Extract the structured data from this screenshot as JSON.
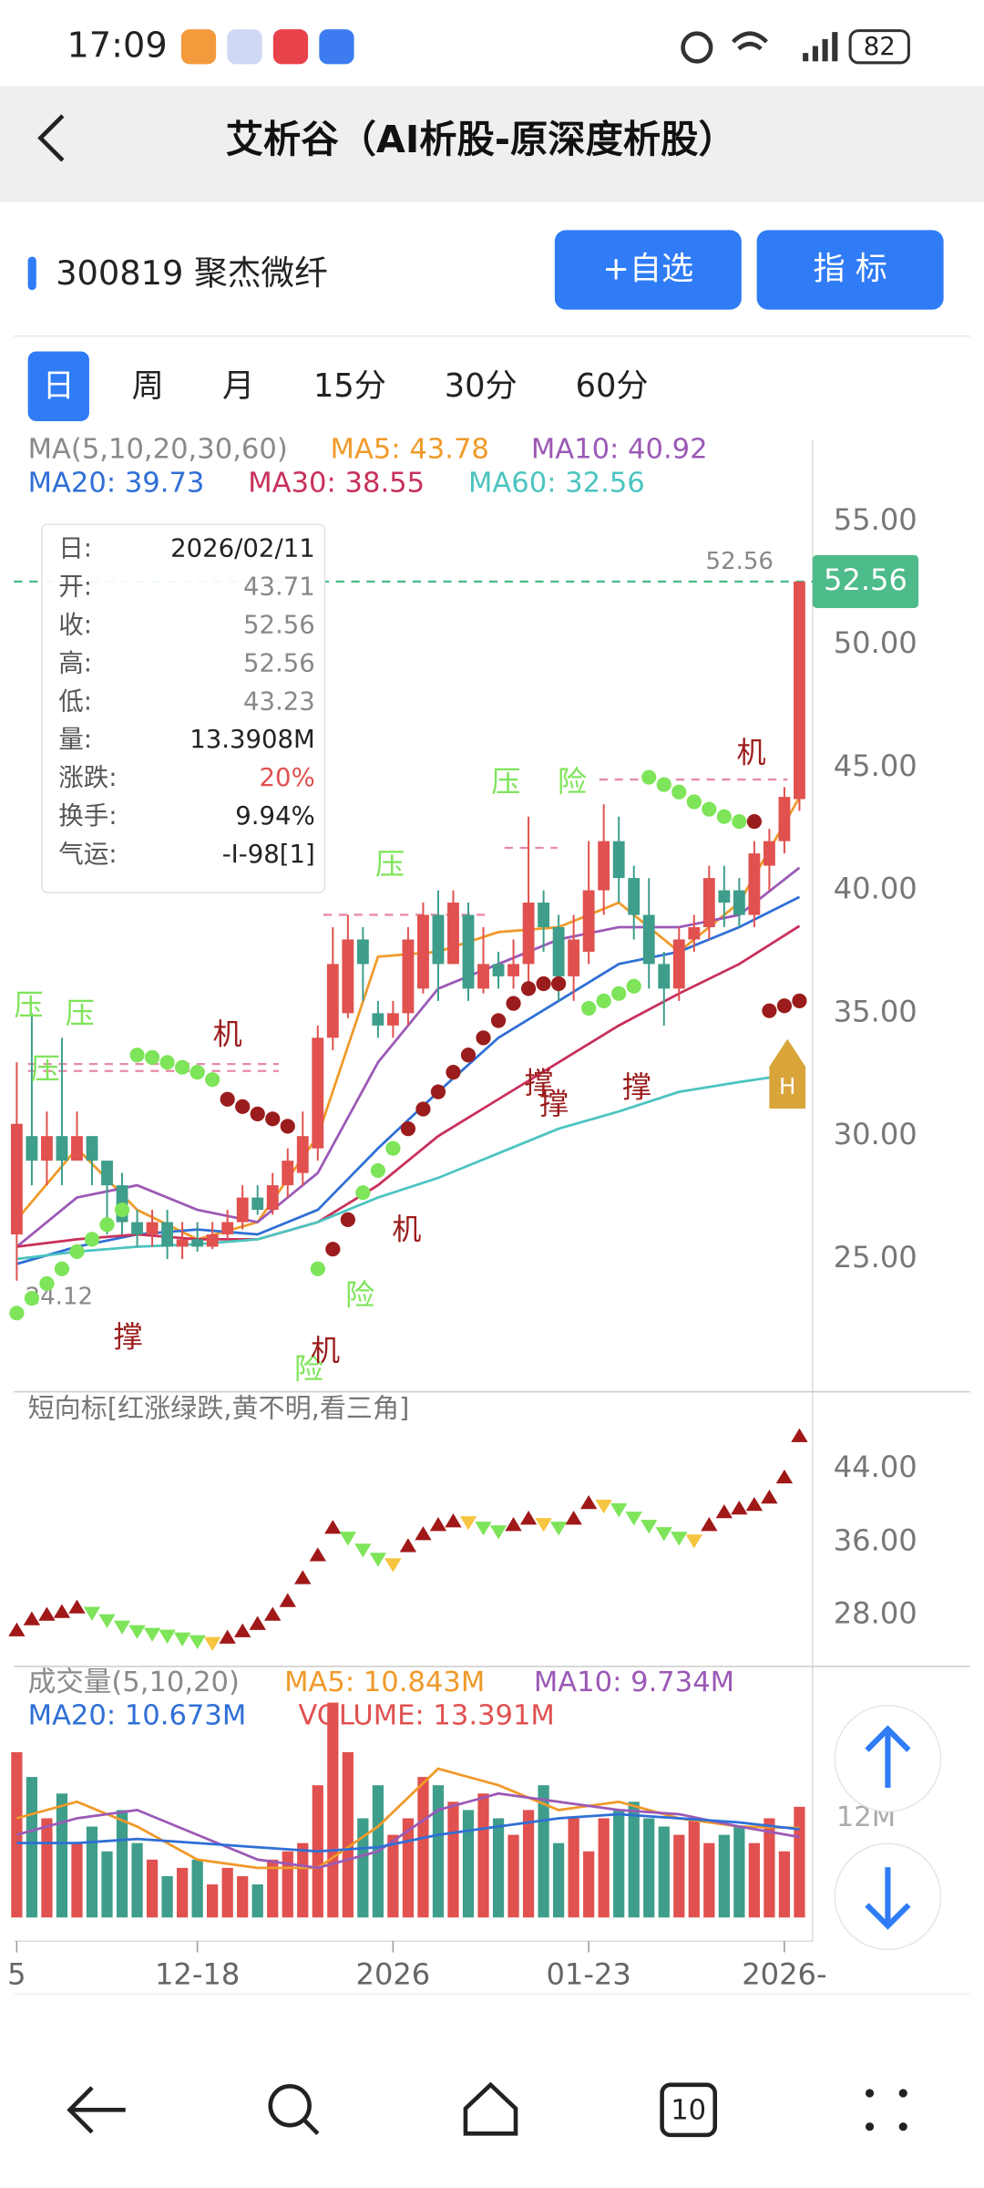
{
  "status": {
    "time": "17:09",
    "battery": "82"
  },
  "header": {
    "title": "艾析谷（AI析股-原深度析股）"
  },
  "stock": {
    "name": "300819 聚杰微纤",
    "buttons": [
      "+自选",
      "指 标"
    ]
  },
  "tabs": [
    "日",
    "周",
    "月",
    "15分",
    "30分",
    "60分"
  ],
  "nav": {
    "tabs_count": "10"
  },
  "chart": {
    "type": "candlestick",
    "ma_legend": [
      {
        "text": "MA(5,10,20,30,60)",
        "color": "#8a8a8a"
      },
      {
        "text": "MA5: 43.78",
        "color": "#f09a2a"
      },
      {
        "text": "MA10: 40.92",
        "color": "#9b59b6"
      },
      {
        "text": "MA20: 39.73",
        "color": "#2f6fd6"
      },
      {
        "text": "MA30: 38.55",
        "color": "#c8305a"
      },
      {
        "text": "MA60: 32.56",
        "color": "#4cc4c0"
      }
    ],
    "ylim": [
      19.6,
      58.35
    ],
    "yticks": [
      {
        "value": 55,
        "label": "55.00"
      },
      {
        "value": 50,
        "label": "50.00"
      },
      {
        "value": 45,
        "label": "45.00"
      },
      {
        "value": 40,
        "label": "40.00"
      },
      {
        "value": 35,
        "label": "35.00"
      },
      {
        "value": 30,
        "label": "30.00"
      },
      {
        "value": 25,
        "label": "25.00"
      }
    ],
    "up_color": "#e0514f",
    "down_color": "#3e9d8b",
    "candles": [
      {
        "o": 26,
        "c": 30.5,
        "h": 33,
        "l": 24.12
      },
      {
        "o": 30,
        "c": 29,
        "h": 35,
        "l": 28
      },
      {
        "o": 29,
        "c": 30,
        "h": 31,
        "l": 28
      },
      {
        "o": 30,
        "c": 29,
        "h": 34,
        "l": 28
      },
      {
        "o": 29,
        "c": 30,
        "h": 31,
        "l": 29
      },
      {
        "o": 30,
        "c": 29,
        "h": 30,
        "l": 28
      },
      {
        "o": 29,
        "c": 28,
        "h": 29,
        "l": 26
      },
      {
        "o": 28,
        "c": 26.5,
        "h": 28.5,
        "l": 26
      },
      {
        "o": 26.5,
        "c": 26,
        "h": 27,
        "l": 25.5
      },
      {
        "o": 26,
        "c": 26.5,
        "h": 27,
        "l": 25.5
      },
      {
        "o": 26.5,
        "c": 25.5,
        "h": 27,
        "l": 25
      },
      {
        "o": 25.5,
        "c": 25.8,
        "h": 26.5,
        "l": 25
      },
      {
        "o": 25.8,
        "c": 25.5,
        "h": 26.5,
        "l": 25.3
      },
      {
        "o": 25.5,
        "c": 26,
        "h": 26.5,
        "l": 25.4
      },
      {
        "o": 26,
        "c": 26.5,
        "h": 27,
        "l": 25.8
      },
      {
        "o": 26.5,
        "c": 27.5,
        "h": 28,
        "l": 26.2
      },
      {
        "o": 27.5,
        "c": 27,
        "h": 28,
        "l": 26.8
      },
      {
        "o": 27,
        "c": 28,
        "h": 28.5,
        "l": 26.8
      },
      {
        "o": 28,
        "c": 29,
        "h": 29.5,
        "l": 27.5
      },
      {
        "o": 28.5,
        "c": 30,
        "h": 31,
        "l": 28
      },
      {
        "o": 29.5,
        "c": 34,
        "h": 34.5,
        "l": 29
      },
      {
        "o": 34,
        "c": 37,
        "h": 38.5,
        "l": 33.5
      },
      {
        "o": 35,
        "c": 38,
        "h": 39,
        "l": 34.8
      },
      {
        "o": 38,
        "c": 37,
        "h": 38.5,
        "l": 35.5
      },
      {
        "o": 35,
        "c": 34.5,
        "h": 35.5,
        "l": 34
      },
      {
        "o": 34.5,
        "c": 35,
        "h": 35.5,
        "l": 34
      },
      {
        "o": 35,
        "c": 38,
        "h": 38.5,
        "l": 34.5
      },
      {
        "o": 36,
        "c": 39,
        "h": 39.5,
        "l": 35.8
      },
      {
        "o": 39,
        "c": 37,
        "h": 40,
        "l": 35.5
      },
      {
        "o": 37,
        "c": 39.5,
        "h": 40,
        "l": 37
      },
      {
        "o": 39,
        "c": 36,
        "h": 39.5,
        "l": 35.5
      },
      {
        "o": 36,
        "c": 37,
        "h": 38.5,
        "l": 35.8
      },
      {
        "o": 37,
        "c": 36.5,
        "h": 37.5,
        "l": 36
      },
      {
        "o": 36.5,
        "c": 37,
        "h": 38,
        "l": 36
      },
      {
        "o": 37,
        "c": 39.5,
        "h": 43,
        "l": 36
      },
      {
        "o": 39.5,
        "c": 38.5,
        "h": 40,
        "l": 37.5
      },
      {
        "o": 38.5,
        "c": 36.5,
        "h": 39,
        "l": 35.5
      },
      {
        "o": 36.5,
        "c": 38,
        "h": 39,
        "l": 35.5
      },
      {
        "o": 37.5,
        "c": 40,
        "h": 42,
        "l": 37
      },
      {
        "o": 40,
        "c": 42,
        "h": 43.5,
        "l": 39
      },
      {
        "o": 42,
        "c": 40.5,
        "h": 43,
        "l": 39.5
      },
      {
        "o": 40.5,
        "c": 39,
        "h": 41,
        "l": 38
      },
      {
        "o": 39,
        "c": 37,
        "h": 40.5,
        "l": 36
      },
      {
        "o": 37,
        "c": 36,
        "h": 37.5,
        "l": 34.5
      },
      {
        "o": 36,
        "c": 38,
        "h": 38.5,
        "l": 35.5
      },
      {
        "o": 38,
        "c": 38.5,
        "h": 39,
        "l": 37.5
      },
      {
        "o": 38.5,
        "c": 40.5,
        "h": 41,
        "l": 38
      },
      {
        "o": 40,
        "c": 39.5,
        "h": 41,
        "l": 38.5
      },
      {
        "o": 40,
        "c": 39,
        "h": 40.5,
        "l": 38.5
      },
      {
        "o": 39,
        "c": 41.5,
        "h": 42,
        "l": 38.5
      },
      {
        "o": 41,
        "c": 42,
        "h": 42.5,
        "l": 40
      },
      {
        "o": 42,
        "c": 43.8,
        "h": 44.2,
        "l": 41.5
      },
      {
        "o": 43.71,
        "c": 52.56,
        "h": 52.56,
        "l": 43.23
      }
    ],
    "low_label": 24.12,
    "last_price": 52.56,
    "ma": {
      "x": [
        0,
        4,
        8,
        12,
        16,
        20,
        24,
        28,
        32,
        36,
        40,
        44,
        48,
        52
      ],
      "series": [
        {
          "color": "#f09a2a",
          "values": [
            26.6,
            29.5,
            27,
            25.8,
            26.5,
            30,
            37.3,
            37.5,
            38.3,
            38.5,
            39.5,
            37.5,
            39.5,
            43.78
          ]
        },
        {
          "color": "#9b59b6",
          "values": [
            25.5,
            27.5,
            28,
            27,
            26.5,
            28.5,
            33,
            36,
            37,
            38,
            38.5,
            38.5,
            39,
            40.92
          ]
        },
        {
          "color": "#2f6fd6",
          "values": [
            24.8,
            25.5,
            26,
            26.2,
            26,
            27,
            29.5,
            31.8,
            34,
            35.5,
            37,
            37.5,
            38.5,
            39.73
          ]
        },
        {
          "color": "#c8305a",
          "values": [
            25.5,
            25.8,
            26,
            25.8,
            25.8,
            26.5,
            28,
            30,
            31.5,
            33,
            34.5,
            35.8,
            37,
            38.55
          ]
        },
        {
          "color": "#4cc4c0",
          "values": [
            25,
            25.3,
            25.5,
            25.6,
            25.8,
            26.5,
            27.5,
            28.3,
            29.3,
            30.3,
            31,
            31.8,
            32.2,
            32.56
          ]
        }
      ]
    },
    "dots": [
      {
        "color": "#7ee45a",
        "x": [
          0,
          1,
          2,
          3,
          4,
          5,
          6,
          7,
          8,
          9,
          10,
          11,
          12,
          13,
          20,
          23,
          24,
          25,
          38,
          39,
          40,
          41,
          42,
          43,
          44,
          45,
          46,
          47,
          48
        ],
        "values": [
          22.8,
          23.4,
          24,
          24.6,
          25.3,
          25.8,
          26.4,
          27,
          33.3,
          33.2,
          33,
          32.8,
          32.6,
          32.3,
          24.6,
          27.7,
          28.6,
          29.5,
          35.2,
          35.5,
          35.8,
          36.1,
          44.6,
          44.3,
          44,
          43.6,
          43.3,
          43,
          42.8
        ]
      },
      {
        "color": "#9b1c1c",
        "x": [
          14,
          15,
          16,
          17,
          18,
          21,
          22,
          26,
          27,
          28,
          29,
          30,
          31,
          32,
          33,
          34,
          35,
          36,
          49,
          50,
          51,
          52
        ],
        "values": [
          31.5,
          31.2,
          30.9,
          30.7,
          30.4,
          25.4,
          26.6,
          30.3,
          31.1,
          31.8,
          32.6,
          33.3,
          34,
          34.7,
          35.4,
          36,
          36.2,
          36.2,
          42.8,
          35.1,
          35.3,
          35.5
        ]
      }
    ],
    "annotations": [
      {
        "text": "压",
        "i": 0.8,
        "v": 35.26,
        "color": "#7ee45a"
      },
      {
        "text": "压",
        "i": 4.2,
        "v": 34.92,
        "color": "#7ee45a"
      },
      {
        "text": "压",
        "i": 1.9,
        "v": 32.65,
        "color": "#7ee45a"
      },
      {
        "text": "机",
        "i": 14,
        "v": 34.07,
        "color": "#9b1c1c"
      },
      {
        "text": "撑",
        "i": 7.4,
        "v": 21.76,
        "color": "#9b1c1c"
      },
      {
        "text": "险",
        "i": 22.8,
        "v": 23.46,
        "color": "#7ee45a"
      },
      {
        "text": "险",
        "i": 19.4,
        "v": 20.46,
        "color": "#7ee45a"
      },
      {
        "text": "机",
        "i": 20.5,
        "v": 21.2,
        "color": "#9b1c1c"
      },
      {
        "text": "机",
        "i": 25.9,
        "v": 26.13,
        "color": "#9b1c1c"
      },
      {
        "text": "压",
        "i": 24.8,
        "v": 40.99,
        "color": "#7ee45a"
      },
      {
        "text": "压",
        "i": 32.5,
        "v": 44.34,
        "color": "#7ee45a"
      },
      {
        "text": "险",
        "i": 36.9,
        "v": 44.34,
        "color": "#7ee45a"
      },
      {
        "text": "撑",
        "i": 34.7,
        "v": 32.08,
        "color": "#9b1c1c"
      },
      {
        "text": "撑",
        "i": 35.7,
        "v": 31.23,
        "color": "#9b1c1c"
      },
      {
        "text": "撑",
        "i": 41.2,
        "v": 31.92,
        "color": "#9b1c1c"
      },
      {
        "text": "机",
        "i": 48.8,
        "v": 45.53,
        "color": "#9b1c1c"
      }
    ],
    "marker": "H",
    "tooltip": [
      {
        "label": "日:",
        "value": "2026/02/11"
      },
      {
        "label": "开:",
        "value": "43.71"
      },
      {
        "label": "收:",
        "value": "52.56"
      },
      {
        "label": "高:",
        "value": "52.56"
      },
      {
        "label": "低:",
        "value": "43.23"
      },
      {
        "label": "量:",
        "value": "13.3908M"
      },
      {
        "label": "涨跌:",
        "value": "20%",
        "color": "#e0514f"
      },
      {
        "label": "换手:",
        "value": "9.94%"
      },
      {
        "label": "气运:",
        "value": "-Ⅰ-98[1]"
      }
    ],
    "indicator": {
      "title": "短向标[红涨绿跌,黄不明,看三角]",
      "ylim": [
        22.4,
        52.4
      ],
      "yticks": [
        {
          "value": 44,
          "label": "44.00"
        },
        {
          "value": 36,
          "label": "36.00"
        },
        {
          "value": 28,
          "label": "28.00"
        }
      ],
      "palette": {
        "up": "#a01818",
        "down": "#7ee45a",
        "flat": "#f5c542"
      },
      "values": [
        26.3,
        27.5,
        28,
        28.3,
        28.8,
        28.3,
        27.5,
        26.8,
        26.3,
        26,
        25.8,
        25.5,
        25.2,
        25,
        25.5,
        26.2,
        27,
        28,
        29.5,
        32,
        34.5,
        37.5,
        36.5,
        35.2,
        34.2,
        33.6,
        35.5,
        36.8,
        37.8,
        38.2,
        38.2,
        37.6,
        37.2,
        37.8,
        38.5,
        38,
        37.6,
        38.5,
        40.2,
        40,
        39.6,
        38.7,
        37.8,
        37,
        36.5,
        36.2,
        37.8,
        39.2,
        39.6,
        40,
        40.8,
        43,
        47.5
      ],
      "states": [
        "up",
        "up",
        "up",
        "up",
        "up",
        "down",
        "down",
        "down",
        "down",
        "down",
        "down",
        "down",
        "down",
        "flat",
        "up",
        "up",
        "up",
        "up",
        "up",
        "up",
        "up",
        "up",
        "down",
        "down",
        "down",
        "flat",
        "up",
        "up",
        "up",
        "up",
        "flat",
        "down",
        "down",
        "up",
        "up",
        "flat",
        "down",
        "up",
        "up",
        "flat",
        "down",
        "down",
        "down",
        "down",
        "down",
        "flat",
        "up",
        "up",
        "up",
        "up",
        "up",
        "up",
        "up"
      ]
    },
    "volume": {
      "legend": [
        {
          "text": "成交量(5,10,20)",
          "color": "#8a8a8a"
        },
        {
          "text": "MA5: 10.843M",
          "color": "#f09a2a"
        },
        {
          "text": "MA10: 9.734M",
          "color": "#9b59b6"
        },
        {
          "text": "MA20: 10.673M",
          "color": "#2f6fd6"
        },
        {
          "text": "VOLUME: 13.391M",
          "color": "#e0514f"
        }
      ],
      "ylim": [
        0,
        27
      ],
      "yticks": [
        {
          "value": 12,
          "label": "12M"
        }
      ],
      "values": [
        20,
        17,
        12,
        15,
        9,
        11,
        8,
        13,
        9,
        7,
        5,
        6,
        7,
        4,
        6,
        5,
        4,
        7,
        8,
        9,
        16,
        26,
        20,
        12,
        16,
        10,
        12,
        17,
        16,
        14,
        13,
        15,
        12,
        10,
        13,
        16,
        9,
        12,
        8,
        12,
        13,
        14,
        12,
        11,
        10,
        12,
        9,
        10,
        11,
        9,
        12,
        8,
        13.391
      ],
      "ma": {
        "x": [
          0,
          4,
          8,
          12,
          16,
          20,
          24,
          28,
          32,
          36,
          40,
          44,
          48,
          52
        ],
        "series": [
          {
            "color": "#f09a2a",
            "values": [
              12,
              14,
              11,
              7,
              6,
              6,
              11,
              18,
              16,
              13,
              14,
              12,
              11,
              10.843
            ]
          },
          {
            "color": "#9b59b6",
            "values": [
              10,
              12,
              13,
              10,
              7,
              6,
              8,
              13,
              15,
              14,
              13,
              12.5,
              11,
              9.734
            ]
          },
          {
            "color": "#2f6fd6",
            "values": [
              9,
              9,
              9.5,
              9,
              8.5,
              8,
              8.5,
              10,
              11,
              12,
              12.5,
              12,
              11.5,
              10.673
            ]
          }
        ]
      }
    },
    "xlabels": [
      {
        "i": 0,
        "label": "5"
      },
      {
        "i": 12,
        "label": "12-18"
      },
      {
        "i": 25,
        "label": "2026"
      },
      {
        "i": 38,
        "label": "01-23"
      },
      {
        "i": 51,
        "label": "2026-"
      }
    ]
  }
}
